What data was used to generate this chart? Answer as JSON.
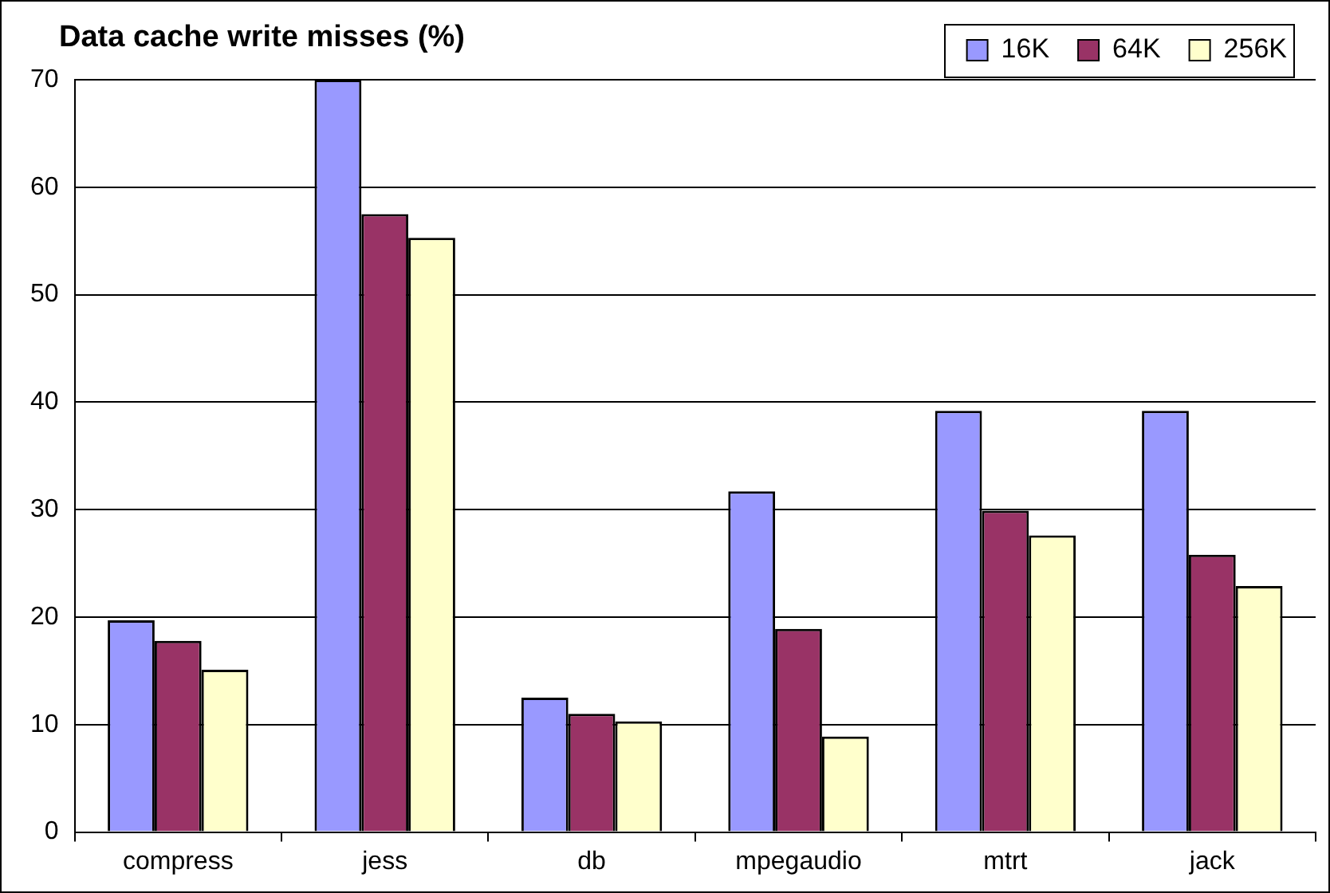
{
  "chart_data": {
    "type": "bar",
    "title": "Data cache write misses (%)",
    "categories": [
      "compress",
      "jess",
      "db",
      "mpegaudio",
      "mtrt",
      "jack"
    ],
    "series": [
      {
        "name": "16K",
        "color": "#9999ff",
        "values": [
          19.7,
          70,
          12.5,
          31.7,
          39.2,
          39.2
        ]
      },
      {
        "name": "64K",
        "color": "#993366",
        "values": [
          17.8,
          57.5,
          11.0,
          18.9,
          29.9,
          25.8
        ]
      },
      {
        "name": "256K",
        "color": "#ffffcc",
        "values": [
          15.1,
          55.3,
          10.3,
          8.9,
          27.6,
          22.9
        ]
      }
    ],
    "ylim": [
      0,
      70
    ],
    "yticks": [
      0,
      10,
      20,
      30,
      40,
      50,
      60,
      70
    ],
    "grid": "y",
    "legend": "top right"
  }
}
